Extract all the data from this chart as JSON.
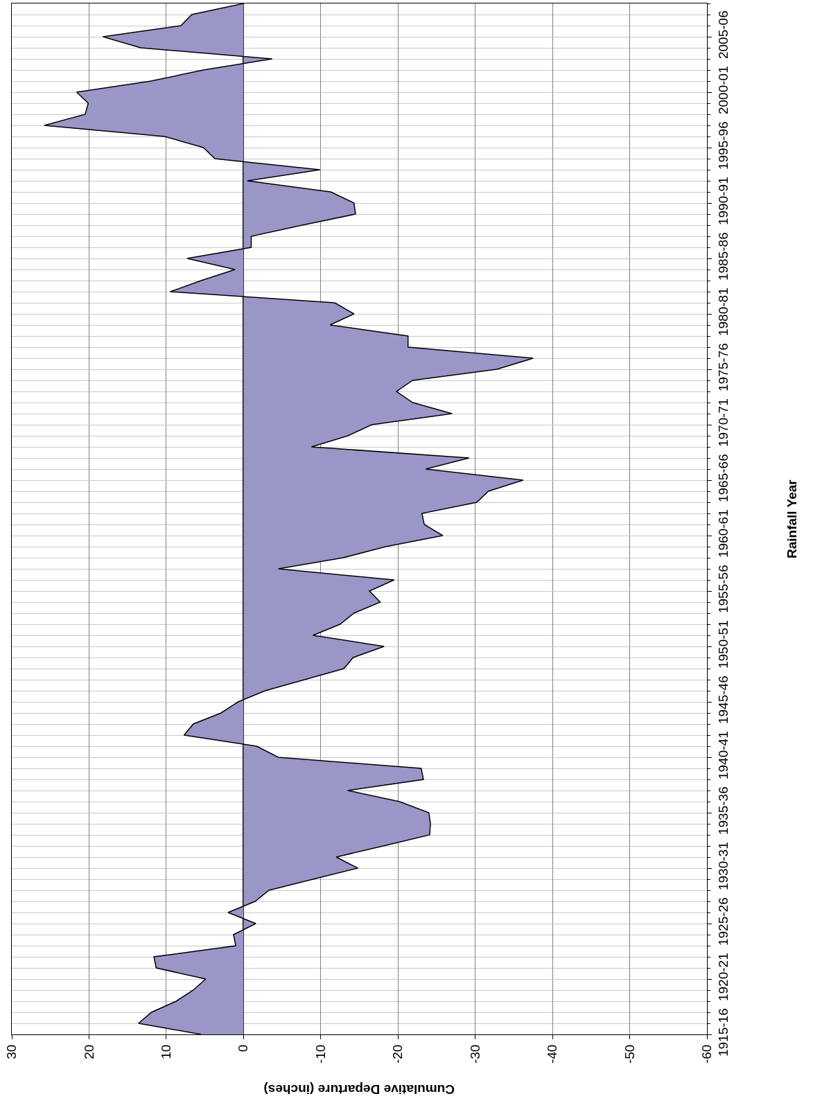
{
  "chart_data": {
    "type": "area",
    "orientation": "horizontal",
    "xlabel": "Cumulative Departure (inches)",
    "ylabel": "Rainfall Year",
    "categories": [
      null,
      null,
      null,
      "2005-06",
      null,
      null,
      null,
      null,
      "2000-01",
      null,
      null,
      null,
      null,
      "1995-96",
      null,
      null,
      null,
      null,
      "1990-91",
      null,
      null,
      null,
      null,
      "1985-86",
      null,
      null,
      null,
      null,
      "1980-81",
      null,
      null,
      null,
      null,
      "1975-76",
      null,
      null,
      null,
      null,
      "1970-71",
      null,
      null,
      null,
      null,
      "1965-66",
      null,
      null,
      null,
      null,
      "1960-61",
      null,
      null,
      null,
      null,
      "1955-56",
      null,
      null,
      null,
      null,
      "1950-51",
      null,
      null,
      null,
      null,
      "1945-46",
      null,
      null,
      null,
      null,
      "1940-41",
      null,
      null,
      null,
      null,
      "1935-36",
      null,
      null,
      null,
      null,
      "1930-31",
      null,
      null,
      null,
      null,
      "1925-26",
      null,
      null,
      null,
      null,
      "1920-21",
      null,
      null,
      null,
      null,
      "1915-16"
    ],
    "series": [
      {
        "color": "#9b96c8",
        "values": [
          0,
          6.7,
          8.1,
          18.2,
          13.3,
          -3.7,
          5.2,
          12.0,
          21.6,
          20.1,
          20.5,
          25.8,
          10.2,
          5.2,
          3.7,
          -9.9,
          -0.5,
          -11.3,
          -14.3,
          -14.5,
          -7.6,
          -1.0,
          -1.0,
          7.3,
          1.1,
          5.5,
          9.5,
          -11.8,
          -14.3,
          -11.2,
          -21.3,
          -21.3,
          -37.5,
          -32.8,
          -21.9,
          -19.8,
          -21.9,
          -27.0,
          -16.6,
          -13.5,
          -8.8,
          -29.2,
          -23.6,
          -36.2,
          -31.7,
          -30.2,
          -23.1,
          -23.4,
          -25.8,
          -18.4,
          -12.9,
          -4.5,
          -19.5,
          -16.3,
          -17.7,
          -14.3,
          -12.5,
          -9.0,
          -18.2,
          -14.2,
          -13.0,
          -7.9,
          -2.8,
          0.7,
          2.9,
          6.5,
          7.7,
          -1.7,
          -4.5,
          -23.0,
          -23.3,
          -13.5,
          -20.2,
          -24.0,
          -24.2,
          -24.1,
          -18.1,
          -12.0,
          -14.8,
          -9.0,
          -3.3,
          -1.5,
          2.0,
          -1.6,
          1.3,
          1.0,
          11.6,
          11.3,
          4.9,
          6.5,
          8.7,
          11.9,
          13.6,
          5.5
        ]
      }
    ],
    "xlim": [
      30,
      -60
    ],
    "xticks": [
      30,
      20,
      10,
      0,
      -10,
      -20,
      -30,
      -40,
      -50,
      -60
    ],
    "grid": true,
    "marker": "none",
    "line_style": "solid"
  }
}
